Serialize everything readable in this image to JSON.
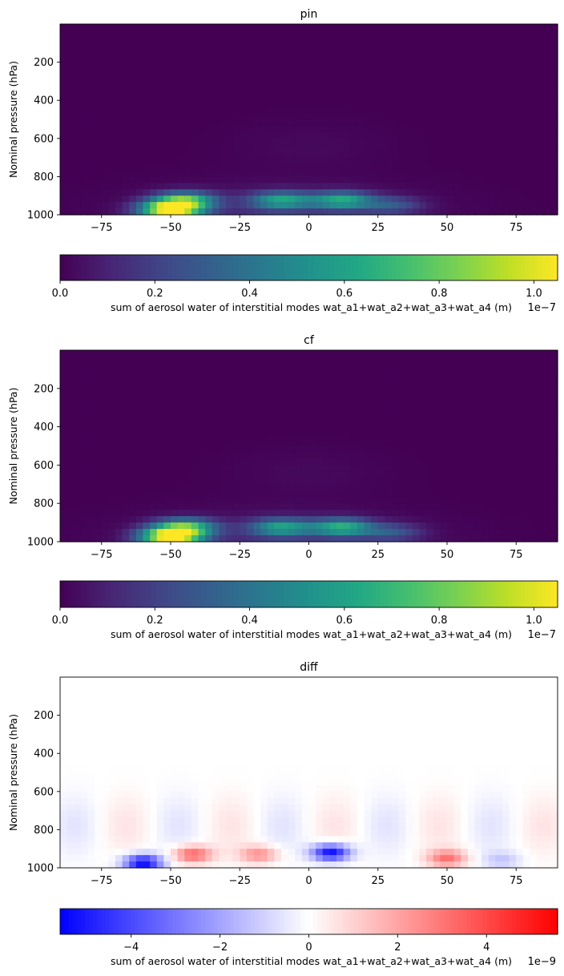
{
  "chart_data": [
    {
      "type": "heatmap",
      "title": "pin",
      "ylabel": "Nominal pressure (hPa)",
      "xlim": [
        -90,
        90
      ],
      "ylim": [
        1000,
        0
      ],
      "x_ticks": [
        "−75",
        "−50",
        "−25",
        "0",
        "25",
        "50",
        "75"
      ],
      "y_ticks": [
        "200",
        "400",
        "600",
        "800",
        "1000"
      ],
      "colormap": "viridis",
      "colorbar": {
        "range": [
          0,
          1.05e-07
        ],
        "ticks": [
          "0.0",
          "0.2",
          "0.4",
          "0.6",
          "0.8",
          "1.0"
        ],
        "offset": "1e−7",
        "label": "sum of aerosol water of interstitial modes wat_a1+wat_a2+wat_a3+wat_a4 (m)"
      },
      "features": [
        {
          "lat": -50,
          "pressure": 975,
          "value": 1.05e-07
        },
        {
          "lat": -45,
          "pressure": 925,
          "value": 7e-08
        },
        {
          "lat": -10,
          "pressure": 925,
          "value": 5.5e-08
        },
        {
          "lat": 12,
          "pressure": 925,
          "value": 5.8e-08
        },
        {
          "lat": 30,
          "pressure": 950,
          "value": 2.5e-08
        }
      ]
    },
    {
      "type": "heatmap",
      "title": "cf",
      "ylabel": "Nominal pressure (hPa)",
      "xlim": [
        -90,
        90
      ],
      "ylim": [
        1000,
        0
      ],
      "x_ticks": [
        "−75",
        "−50",
        "−25",
        "0",
        "25",
        "50",
        "75"
      ],
      "y_ticks": [
        "200",
        "400",
        "600",
        "800",
        "1000"
      ],
      "colormap": "viridis",
      "colorbar": {
        "range": [
          0,
          1.05e-07
        ],
        "ticks": [
          "0.0",
          "0.2",
          "0.4",
          "0.6",
          "0.8",
          "1.0"
        ],
        "offset": "1e−7",
        "label": "sum of aerosol water of interstitial modes wat_a1+wat_a2+wat_a3+wat_a4 (m)"
      },
      "features": [
        {
          "lat": -50,
          "pressure": 975,
          "value": 1.05e-07
        },
        {
          "lat": -45,
          "pressure": 925,
          "value": 7e-08
        },
        {
          "lat": -10,
          "pressure": 925,
          "value": 5.3e-08
        },
        {
          "lat": 12,
          "pressure": 925,
          "value": 6e-08
        },
        {
          "lat": 30,
          "pressure": 950,
          "value": 2.5e-08
        }
      ]
    },
    {
      "type": "heatmap",
      "title": "diff",
      "ylabel": "Nominal pressure (hPa)",
      "xlim": [
        -90,
        90
      ],
      "ylim": [
        1000,
        0
      ],
      "x_ticks": [
        "−75",
        "−50",
        "−25",
        "0",
        "25",
        "50",
        "75"
      ],
      "y_ticks": [
        "200",
        "400",
        "600",
        "800",
        "1000"
      ],
      "colormap": "bwr",
      "colorbar": {
        "range": [
          -5.6e-09,
          5.6e-09
        ],
        "ticks": [
          "−4",
          "−2",
          "0",
          "2",
          "4"
        ],
        "offset": "1e−9",
        "label": "sum of aerosol water of interstitial modes wat_a1+wat_a2+wat_a3+wat_a4 (m)"
      },
      "features": [
        {
          "lat": -60,
          "pressure": 975,
          "value": -5.5e-09
        },
        {
          "lat": -42,
          "pressure": 930,
          "value": 3.5e-09
        },
        {
          "lat": -18,
          "pressure": 930,
          "value": 2.5e-09
        },
        {
          "lat": 8,
          "pressure": 920,
          "value": -5.5e-09
        },
        {
          "lat": 50,
          "pressure": 950,
          "value": 3e-09
        },
        {
          "lat": 70,
          "pressure": 960,
          "value": -1.2e-09
        }
      ]
    }
  ]
}
